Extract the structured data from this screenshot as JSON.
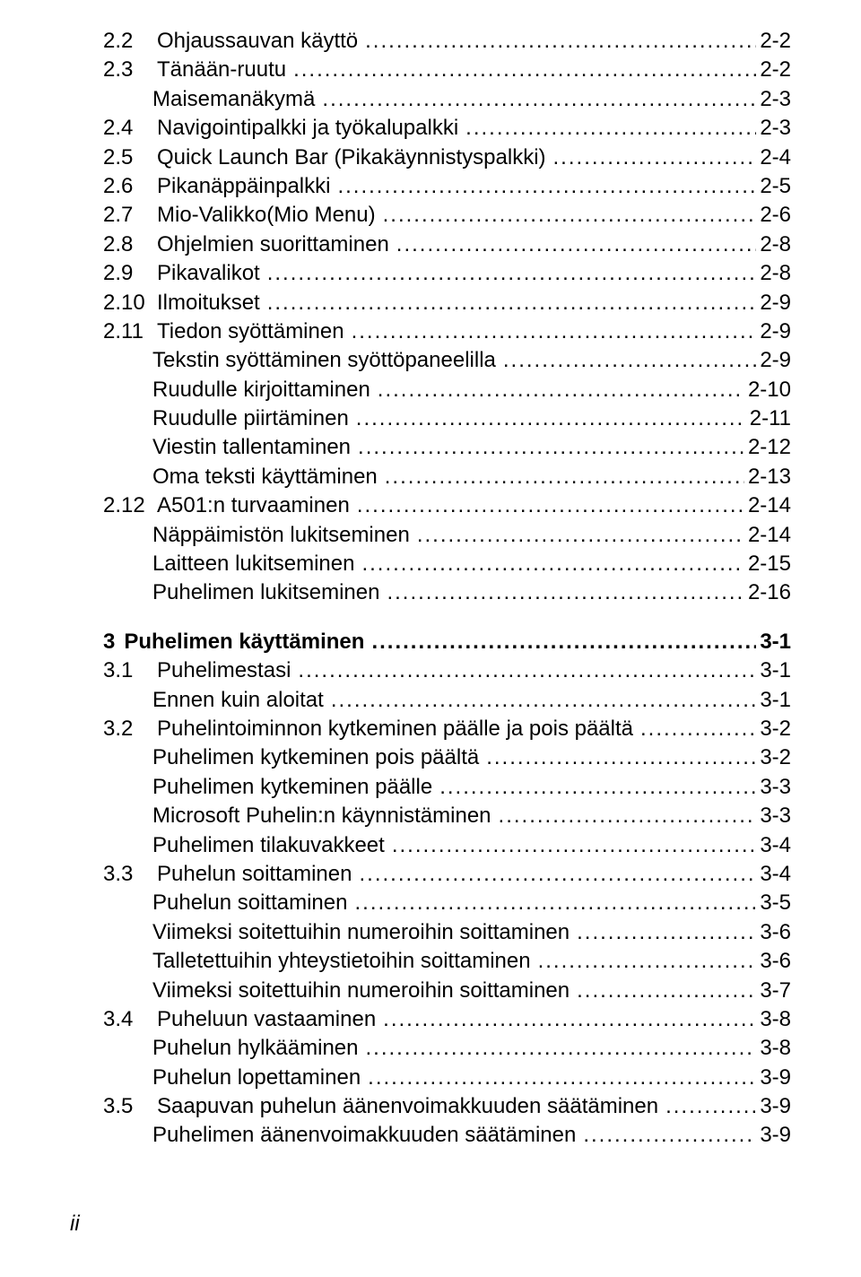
{
  "toc": [
    {
      "indent": 0,
      "num": "2.2",
      "title": "Ohjaussauvan käyttö",
      "page": "2-2"
    },
    {
      "indent": 0,
      "num": "2.3",
      "title": "Tänään-ruutu",
      "page": "2-2"
    },
    {
      "indent": 1,
      "num": "",
      "title": "Maisemanäkymä",
      "page": "2-3"
    },
    {
      "indent": 0,
      "num": "2.4",
      "title": "Navigointipalkki ja työkalupalkki",
      "page": "2-3"
    },
    {
      "indent": 0,
      "num": "2.5",
      "title": "Quick Launch Bar (Pikakäynnistyspalkki)",
      "page": "2-4"
    },
    {
      "indent": 0,
      "num": "2.6",
      "title": "Pikanäppäinpalkki",
      "page": "2-5"
    },
    {
      "indent": 0,
      "num": "2.7",
      "title": "Mio-Valikko(Mio Menu)",
      "page": "2-6"
    },
    {
      "indent": 0,
      "num": "2.8",
      "title": "Ohjelmien suorittaminen",
      "page": "2-8"
    },
    {
      "indent": 0,
      "num": "2.9",
      "title": "Pikavalikot",
      "page": "2-8"
    },
    {
      "indent": 0,
      "num": "2.10",
      "title": "Ilmoitukset",
      "page": "2-9"
    },
    {
      "indent": 0,
      "num": "2.11",
      "title": "Tiedon syöttäminen",
      "page": "2-9"
    },
    {
      "indent": 1,
      "num": "",
      "title": "Tekstin syöttäminen syöttöpaneelilla",
      "page": "2-9"
    },
    {
      "indent": 1,
      "num": "",
      "title": "Ruudulle kirjoittaminen",
      "page": "2-10"
    },
    {
      "indent": 1,
      "num": "",
      "title": "Ruudulle piirtäminen",
      "page": "2-11"
    },
    {
      "indent": 1,
      "num": "",
      "title": "Viestin tallentaminen",
      "page": "2-12"
    },
    {
      "indent": 1,
      "num": "",
      "title": "Oma teksti käyttäminen",
      "page": "2-13"
    },
    {
      "indent": 0,
      "num": "2.12",
      "title": "A501:n turvaaminen",
      "page": "2-14"
    },
    {
      "indent": 1,
      "num": "",
      "title": "Näppäimistön lukitseminen",
      "page": "2-14"
    },
    {
      "indent": 1,
      "num": "",
      "title": "Laitteen lukitseminen",
      "page": "2-15"
    },
    {
      "indent": 1,
      "num": "",
      "title": "Puhelimen lukitseminen",
      "page": "2-16"
    },
    {
      "indent": "c",
      "num": "3",
      "title": "Puhelimen käyttäminen",
      "page": "3-1",
      "chapter": true
    },
    {
      "indent": 0,
      "num": "3.1",
      "title": "Puhelimestasi",
      "page": "3-1"
    },
    {
      "indent": 1,
      "num": "",
      "title": "Ennen kuin aloitat",
      "page": "3-1"
    },
    {
      "indent": 0,
      "num": "3.2",
      "title": "Puhelintoiminnon kytkeminen päälle ja pois päältä",
      "page": "3-2"
    },
    {
      "indent": 1,
      "num": "",
      "title": "Puhelimen kytkeminen pois päältä",
      "page": "3-2"
    },
    {
      "indent": 1,
      "num": "",
      "title": "Puhelimen kytkeminen päälle",
      "page": "3-3"
    },
    {
      "indent": 1,
      "num": "",
      "title": "Microsoft Puhelin:n käynnistäminen",
      "page": "3-3"
    },
    {
      "indent": 1,
      "num": "",
      "title": "Puhelimen tilakuvakkeet",
      "page": "3-4"
    },
    {
      "indent": 0,
      "num": "3.3",
      "title": "Puhelun soittaminen",
      "page": "3-4"
    },
    {
      "indent": 1,
      "num": "",
      "title": "Puhelun soittaminen",
      "page": "3-5"
    },
    {
      "indent": 1,
      "num": "",
      "title": "Viimeksi soitettuihin numeroihin soittaminen",
      "page": "3-6"
    },
    {
      "indent": 1,
      "num": "",
      "title": "Talletettuihin yhteystietoihin soittaminen",
      "page": "3-6"
    },
    {
      "indent": 1,
      "num": "",
      "title": "Viimeksi soitettuihin numeroihin soittaminen",
      "page": "3-7"
    },
    {
      "indent": 0,
      "num": "3.4",
      "title": "Puheluun vastaaminen",
      "page": "3-8"
    },
    {
      "indent": 1,
      "num": "",
      "title": "Puhelun hylkääminen",
      "page": "3-8"
    },
    {
      "indent": 1,
      "num": "",
      "title": "Puhelun lopettaminen",
      "page": "3-9"
    },
    {
      "indent": 0,
      "num": "3.5",
      "title": "Saapuvan puhelun äänenvoimakkuuden säätäminen",
      "page": "3-9"
    },
    {
      "indent": 1,
      "num": "",
      "title": "Puhelimen äänenvoimakkuuden säätäminen",
      "page": "3-9"
    }
  ],
  "footer": "ii"
}
